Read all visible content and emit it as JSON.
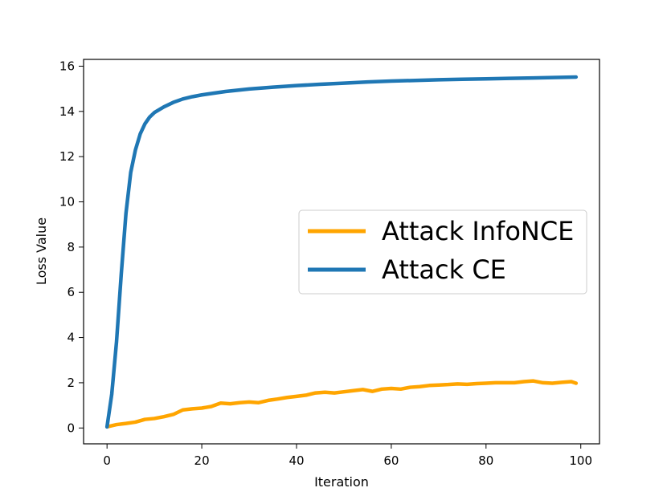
{
  "chart_data": {
    "type": "line",
    "title": "",
    "xlabel": "Iteration",
    "ylabel": "Loss Value",
    "xlim": [
      -4.95,
      103.95
    ],
    "ylim": [
      -0.7,
      16.3
    ],
    "xticks": [
      0,
      20,
      40,
      60,
      80,
      100
    ],
    "yticks": [
      0,
      2,
      4,
      6,
      8,
      10,
      12,
      14,
      16
    ],
    "grid": false,
    "legend": {
      "placement": "center-right"
    },
    "series": [
      {
        "name": "Attack InfoNCE",
        "color": "#ffa500",
        "x": [
          0,
          2,
          4,
          6,
          8,
          10,
          12,
          14,
          16,
          18,
          20,
          22,
          24,
          26,
          28,
          30,
          32,
          34,
          36,
          38,
          40,
          42,
          44,
          46,
          48,
          50,
          52,
          54,
          56,
          58,
          60,
          62,
          64,
          66,
          68,
          70,
          72,
          74,
          76,
          78,
          80,
          82,
          84,
          86,
          88,
          90,
          92,
          94,
          96,
          98,
          99
        ],
        "values": [
          0.05,
          0.15,
          0.2,
          0.26,
          0.38,
          0.42,
          0.5,
          0.6,
          0.8,
          0.85,
          0.88,
          0.95,
          1.1,
          1.07,
          1.12,
          1.15,
          1.12,
          1.22,
          1.28,
          1.35,
          1.4,
          1.45,
          1.55,
          1.58,
          1.55,
          1.6,
          1.65,
          1.7,
          1.62,
          1.72,
          1.75,
          1.72,
          1.8,
          1.83,
          1.88,
          1.9,
          1.92,
          1.95,
          1.93,
          1.96,
          1.98,
          2.0,
          2.0,
          2.0,
          2.05,
          2.08,
          2.0,
          1.98,
          2.02,
          2.05,
          1.98
        ]
      },
      {
        "name": "Attack CE",
        "color": "#1f77b4",
        "x": [
          0,
          1,
          2,
          3,
          4,
          5,
          6,
          7,
          8,
          9,
          10,
          12,
          14,
          16,
          18,
          20,
          25,
          30,
          35,
          40,
          45,
          50,
          55,
          60,
          65,
          70,
          75,
          80,
          85,
          90,
          95,
          99
        ],
        "values": [
          0.05,
          1.5,
          3.8,
          6.8,
          9.5,
          11.3,
          12.3,
          13.0,
          13.45,
          13.75,
          13.95,
          14.2,
          14.4,
          14.55,
          14.65,
          14.73,
          14.88,
          14.99,
          15.07,
          15.14,
          15.2,
          15.25,
          15.3,
          15.34,
          15.37,
          15.4,
          15.42,
          15.44,
          15.46,
          15.48,
          15.5,
          15.52
        ]
      }
    ]
  }
}
